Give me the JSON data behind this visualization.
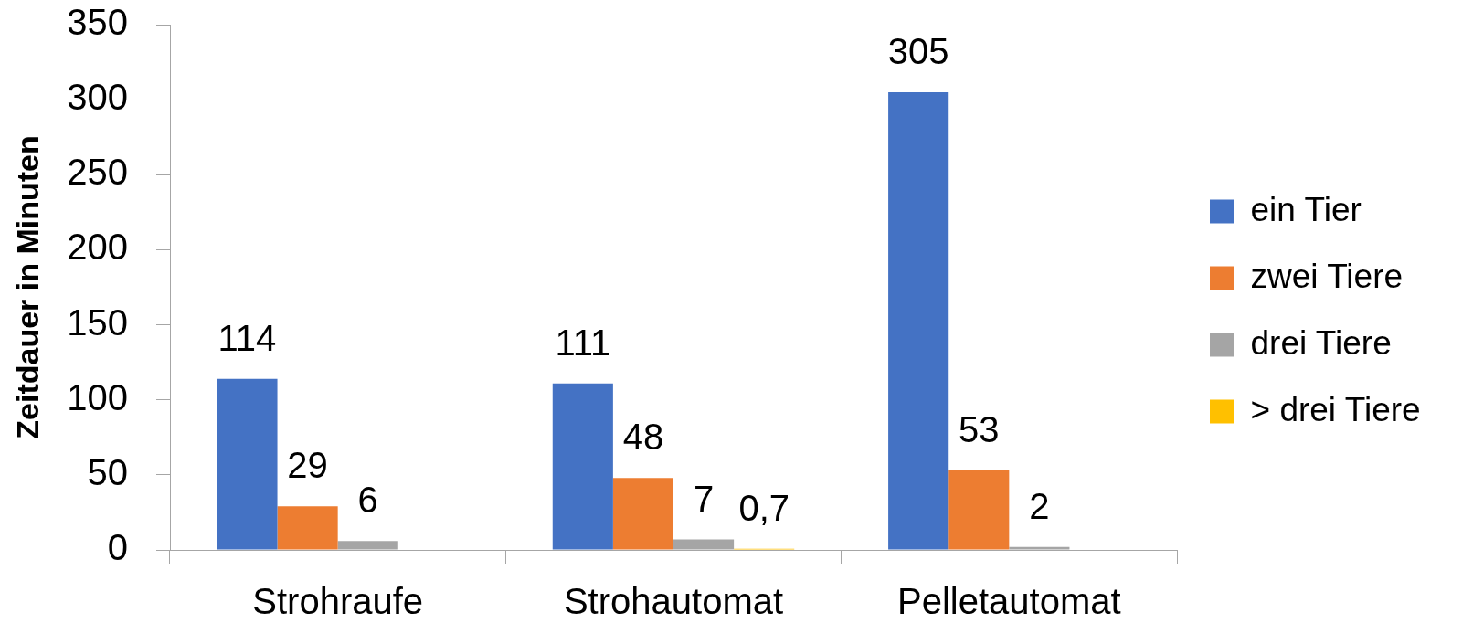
{
  "chart_data": {
    "type": "bar",
    "ylabel": "Zeitdauer in Minuten",
    "categories": [
      "Strohraufe",
      "Strohautomat",
      "Pelletautomat"
    ],
    "series": [
      {
        "name": "ein Tier",
        "color": "#4472c4",
        "values": [
          114,
          111,
          305
        ],
        "value_labels": [
          "114",
          "111",
          "305"
        ]
      },
      {
        "name": "zwei Tiere",
        "color": "#ed7d31",
        "values": [
          29,
          48,
          53
        ],
        "value_labels": [
          "29",
          "48",
          "53"
        ]
      },
      {
        "name": "drei Tiere",
        "color": "#a5a5a5",
        "values": [
          6,
          7,
          2
        ],
        "value_labels": [
          "6",
          "7",
          "2"
        ]
      },
      {
        "name": "> drei Tiere",
        "color": "#ffc000",
        "values": [
          null,
          0.7,
          null
        ],
        "value_labels": [
          null,
          "0,7",
          null
        ]
      }
    ],
    "ylim": [
      0,
      350
    ],
    "yticks": [
      0,
      50,
      100,
      150,
      200,
      250,
      300,
      350
    ],
    "grid": false,
    "legend": "right"
  }
}
